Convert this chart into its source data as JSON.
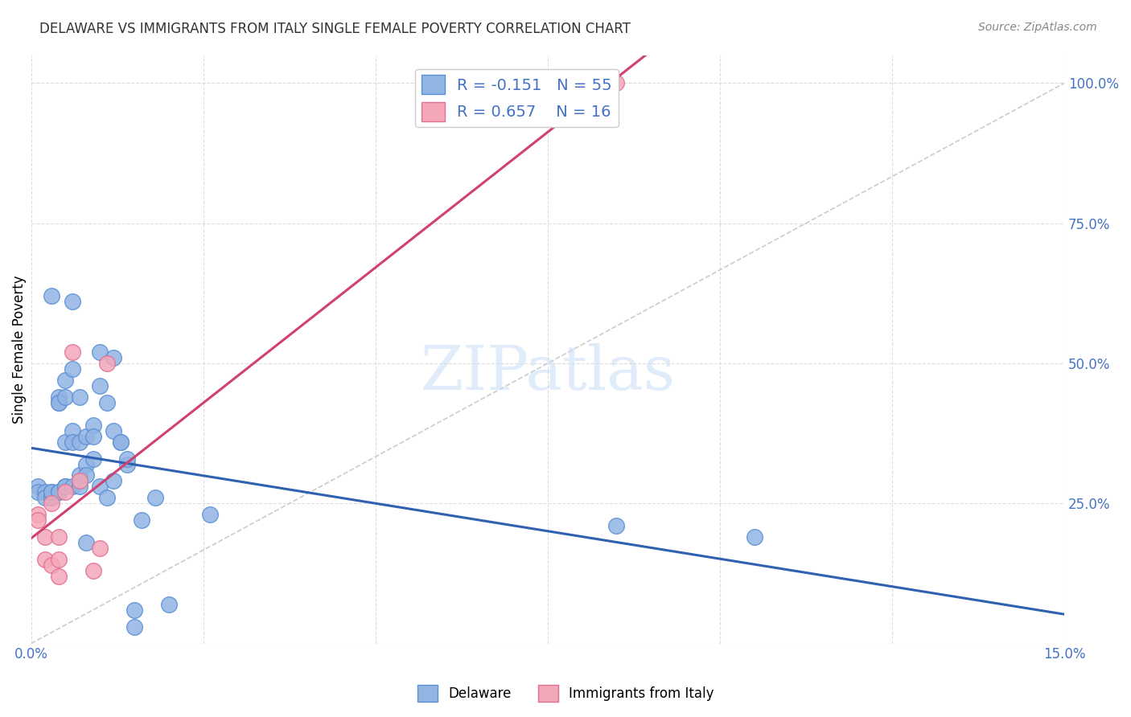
{
  "title": "DELAWARE VS IMMIGRANTS FROM ITALY SINGLE FEMALE POVERTY CORRELATION CHART",
  "source": "Source: ZipAtlas.com",
  "ylabel": "Single Female Poverty",
  "ylabel_right_ticks": [
    "100.0%",
    "75.0%",
    "50.0%",
    "25.0%"
  ],
  "ylabel_right_vals": [
    1.0,
    0.75,
    0.5,
    0.25
  ],
  "delaware_color": "#92b4e3",
  "italy_color": "#f4a7b9",
  "delaware_edge_color": "#5a8fd4",
  "italy_edge_color": "#e07090",
  "trendline_delaware_color": "#3060b0",
  "trendline_italy_color": "#d04070",
  "diagonal_color": "#cccccc",
  "watermark": "ZIPatlas",
  "background_color": "#ffffff",
  "xlim": [
    0.0,
    0.15
  ],
  "ylim": [
    0.0,
    1.05
  ],
  "delaware_x": [
    0.001,
    0.001,
    0.002,
    0.002,
    0.003,
    0.003,
    0.003,
    0.003,
    0.003,
    0.004,
    0.004,
    0.004,
    0.004,
    0.004,
    0.005,
    0.005,
    0.005,
    0.005,
    0.005,
    0.006,
    0.006,
    0.006,
    0.006,
    0.006,
    0.007,
    0.007,
    0.007,
    0.007,
    0.008,
    0.008,
    0.008,
    0.008,
    0.009,
    0.009,
    0.009,
    0.01,
    0.01,
    0.01,
    0.011,
    0.011,
    0.012,
    0.012,
    0.012,
    0.013,
    0.013,
    0.014,
    0.014,
    0.015,
    0.015,
    0.016,
    0.018,
    0.02,
    0.026,
    0.085,
    0.105
  ],
  "delaware_y": [
    0.28,
    0.27,
    0.27,
    0.26,
    0.62,
    0.26,
    0.27,
    0.26,
    0.27,
    0.44,
    0.43,
    0.43,
    0.27,
    0.27,
    0.47,
    0.44,
    0.36,
    0.28,
    0.28,
    0.61,
    0.49,
    0.38,
    0.36,
    0.28,
    0.44,
    0.36,
    0.3,
    0.28,
    0.37,
    0.32,
    0.3,
    0.18,
    0.39,
    0.37,
    0.33,
    0.52,
    0.46,
    0.28,
    0.43,
    0.26,
    0.51,
    0.38,
    0.29,
    0.36,
    0.36,
    0.32,
    0.33,
    0.06,
    0.03,
    0.22,
    0.26,
    0.07,
    0.23,
    0.21,
    0.19
  ],
  "italy_x": [
    0.001,
    0.001,
    0.002,
    0.002,
    0.003,
    0.003,
    0.004,
    0.004,
    0.004,
    0.005,
    0.006,
    0.007,
    0.009,
    0.01,
    0.011,
    0.085
  ],
  "italy_y": [
    0.23,
    0.22,
    0.19,
    0.15,
    0.25,
    0.14,
    0.19,
    0.15,
    0.12,
    0.27,
    0.52,
    0.29,
    0.13,
    0.17,
    0.5,
    1.0
  ],
  "grid_color": "#dddddd",
  "vertical_tick_positions": [
    0.0,
    0.025,
    0.05,
    0.075,
    0.1,
    0.125,
    0.15
  ]
}
